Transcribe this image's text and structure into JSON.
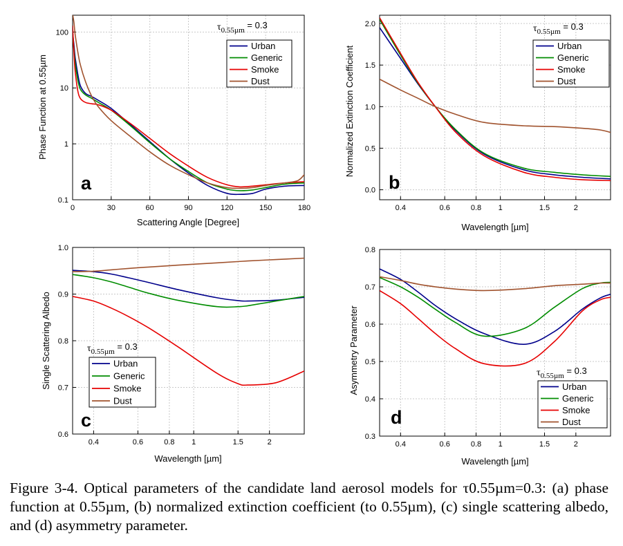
{
  "colors": {
    "Urban": "#00008b",
    "Generic": "#008c00",
    "Smoke": "#e60000",
    "Dust": "#a0522d",
    "grid": "#c8c8c8"
  },
  "caption": "Figure 3-4. Optical parameters of the candidate land aerosol models for τ0.55µm=0.3: (a) phase function at 0.55µm, (b) normalized extinction coefficient (to 0.55µm), (c) single scattering albedo, and (d) asymmetry parameter.",
  "chart_data": [
    {
      "panel_label": "a",
      "type": "line",
      "annotation": {
        "main": "τ",
        "sub": "0.55µm",
        "rest": " = 0.3"
      },
      "xlabel": "Scattering Angle [Degree]",
      "ylabel": "Phase Function at 0.55µm",
      "xlim": [
        0,
        180
      ],
      "ylim": [
        0.1,
        200
      ],
      "yscale": "log",
      "xscale": "linear",
      "grid": true,
      "legend_position": "top-right",
      "xticks": [
        {
          "v": 0,
          "label": "0"
        },
        {
          "v": 30,
          "label": "30"
        },
        {
          "v": 60,
          "label": "60"
        },
        {
          "v": 90,
          "label": "90"
        },
        {
          "v": 120,
          "label": "120"
        },
        {
          "v": 150,
          "label": "150"
        },
        {
          "v": 180,
          "label": "180"
        }
      ],
      "yticks": [
        {
          "v": 0.1,
          "label": "0.1"
        },
        {
          "v": 1,
          "label": "1"
        },
        {
          "v": 10,
          "label": "10"
        },
        {
          "v": 100,
          "label": "100"
        }
      ],
      "series": [
        {
          "name": "Urban",
          "x": [
            0,
            1,
            2,
            4,
            6,
            10,
            15,
            20,
            30,
            45,
            60,
            75,
            90,
            105,
            120,
            130,
            140,
            150,
            165,
            180
          ],
          "y": [
            100,
            60,
            35,
            18,
            11,
            8,
            7,
            6,
            4.3,
            2.2,
            1.1,
            0.55,
            0.3,
            0.18,
            0.13,
            0.125,
            0.13,
            0.155,
            0.175,
            0.18
          ]
        },
        {
          "name": "Generic",
          "x": [
            0,
            1,
            2,
            4,
            6,
            10,
            15,
            20,
            30,
            45,
            60,
            75,
            90,
            105,
            120,
            130,
            140,
            150,
            165,
            180
          ],
          "y": [
            90,
            50,
            28,
            14,
            9.5,
            7.5,
            6.5,
            5.5,
            4,
            2.1,
            1.05,
            0.55,
            0.32,
            0.2,
            0.155,
            0.145,
            0.15,
            0.165,
            0.19,
            0.2
          ]
        },
        {
          "name": "Smoke",
          "x": [
            0,
            1,
            2,
            4,
            6,
            10,
            15,
            20,
            30,
            45,
            60,
            75,
            90,
            105,
            120,
            130,
            140,
            150,
            165,
            180
          ],
          "y": [
            130,
            45,
            20,
            9,
            6.5,
            5.5,
            5.2,
            5,
            4,
            2.3,
            1.25,
            0.68,
            0.4,
            0.25,
            0.185,
            0.17,
            0.175,
            0.185,
            0.2,
            0.21
          ]
        },
        {
          "name": "Dust",
          "x": [
            0,
            1,
            2,
            4,
            6,
            10,
            15,
            20,
            30,
            45,
            60,
            75,
            90,
            105,
            120,
            130,
            140,
            150,
            165,
            175,
            180
          ],
          "y": [
            210,
            150,
            90,
            45,
            26,
            13,
            7,
            4.6,
            2.6,
            1.35,
            0.72,
            0.42,
            0.28,
            0.2,
            0.165,
            0.16,
            0.165,
            0.18,
            0.2,
            0.22,
            0.28
          ]
        }
      ]
    },
    {
      "panel_label": "b",
      "type": "line",
      "annotation": {
        "main": "τ",
        "sub": "0.55µm",
        "rest": " = 0.3"
      },
      "xlabel": "Wavelength [µm]",
      "ylabel": "Normalized Extinction Coefficient",
      "xlim": [
        0.33,
        2.75
      ],
      "ylim": [
        -0.12,
        2.1
      ],
      "xscale": "log",
      "yscale": "linear",
      "grid": true,
      "legend_position": "top-right",
      "xticks": [
        {
          "v": 0.4,
          "label": "0.4"
        },
        {
          "v": 0.6,
          "label": "0.6"
        },
        {
          "v": 0.8,
          "label": "0.8"
        },
        {
          "v": 1,
          "label": "1"
        },
        {
          "v": 1.5,
          "label": "1.5"
        },
        {
          "v": 2,
          "label": "2"
        }
      ],
      "yticks": [
        {
          "v": 0,
          "label": "0.0"
        },
        {
          "v": 0.5,
          "label": "0.5"
        },
        {
          "v": 1,
          "label": "1.0"
        },
        {
          "v": 1.5,
          "label": "1.5"
        },
        {
          "v": 2,
          "label": "2.0"
        }
      ],
      "series": [
        {
          "name": "Urban",
          "x": [
            0.33,
            0.4,
            0.47,
            0.55,
            0.66,
            0.86,
            1.24,
            1.64,
            2.12,
            2.75
          ],
          "y": [
            1.95,
            1.58,
            1.27,
            1.0,
            0.72,
            0.43,
            0.24,
            0.18,
            0.15,
            0.13
          ]
        },
        {
          "name": "Generic",
          "x": [
            0.33,
            0.4,
            0.47,
            0.55,
            0.66,
            0.86,
            1.24,
            1.64,
            2.12,
            2.75
          ],
          "y": [
            2.05,
            1.62,
            1.28,
            1.0,
            0.73,
            0.44,
            0.26,
            0.21,
            0.18,
            0.16
          ]
        },
        {
          "name": "Smoke",
          "x": [
            0.33,
            0.4,
            0.47,
            0.55,
            0.66,
            0.86,
            1.24,
            1.64,
            2.12,
            2.75
          ],
          "y": [
            2.07,
            1.64,
            1.29,
            1.0,
            0.7,
            0.41,
            0.21,
            0.15,
            0.12,
            0.11
          ]
        },
        {
          "name": "Dust",
          "x": [
            0.33,
            0.4,
            0.47,
            0.55,
            0.66,
            0.86,
            1.24,
            1.64,
            2.12,
            2.5,
            2.75
          ],
          "y": [
            1.33,
            1.2,
            1.1,
            1.0,
            0.91,
            0.81,
            0.77,
            0.76,
            0.74,
            0.72,
            0.69
          ]
        }
      ]
    },
    {
      "panel_label": "c",
      "type": "line",
      "annotation": {
        "main": "τ",
        "sub": "0.55µm",
        "rest": " = 0.3"
      },
      "xlabel": "Wavelength [µm]",
      "ylabel": "Single Scattering Albedo",
      "xlim": [
        0.33,
        2.75
      ],
      "ylim": [
        0.6,
        1.0
      ],
      "xscale": "log",
      "yscale": "linear",
      "grid": true,
      "legend_position": "bottom-left",
      "xticks": [
        {
          "v": 0.4,
          "label": "0.4"
        },
        {
          "v": 0.6,
          "label": "0.6"
        },
        {
          "v": 0.8,
          "label": "0.8"
        },
        {
          "v": 1,
          "label": "1"
        },
        {
          "v": 1.5,
          "label": "1.5"
        },
        {
          "v": 2,
          "label": "2"
        }
      ],
      "yticks": [
        {
          "v": 0.6,
          "label": "0.6"
        },
        {
          "v": 0.7,
          "label": "0.7"
        },
        {
          "v": 0.8,
          "label": "0.8"
        },
        {
          "v": 0.9,
          "label": "0.9"
        },
        {
          "v": 1.0,
          "label": "1.0"
        }
      ],
      "series": [
        {
          "name": "Urban",
          "x": [
            0.33,
            0.4,
            0.47,
            0.55,
            0.66,
            0.86,
            1.24,
            1.5,
            1.64,
            2.12,
            2.75
          ],
          "y": [
            0.951,
            0.948,
            0.943,
            0.935,
            0.925,
            0.91,
            0.892,
            0.886,
            0.885,
            0.887,
            0.893
          ]
        },
        {
          "name": "Generic",
          "x": [
            0.33,
            0.4,
            0.47,
            0.55,
            0.66,
            0.86,
            1.24,
            1.5,
            1.64,
            2.12,
            2.75
          ],
          "y": [
            0.942,
            0.935,
            0.926,
            0.915,
            0.902,
            0.887,
            0.873,
            0.873,
            0.875,
            0.885,
            0.895
          ]
        },
        {
          "name": "Smoke",
          "x": [
            0.33,
            0.4,
            0.47,
            0.55,
            0.66,
            0.86,
            1.24,
            1.5,
            1.64,
            2.12,
            2.75
          ],
          "y": [
            0.895,
            0.885,
            0.87,
            0.852,
            0.828,
            0.788,
            0.73,
            0.708,
            0.705,
            0.71,
            0.735
          ]
        },
        {
          "name": "Dust",
          "x": [
            0.33,
            0.4,
            0.47,
            0.55,
            0.66,
            0.86,
            1.24,
            1.64,
            2.12,
            2.75
          ],
          "y": [
            0.948,
            0.949,
            0.952,
            0.955,
            0.958,
            0.962,
            0.967,
            0.971,
            0.974,
            0.977
          ]
        }
      ]
    },
    {
      "panel_label": "d",
      "type": "line",
      "annotation": {
        "main": "τ",
        "sub": "0.55µm",
        "rest": " = 0.3"
      },
      "xlabel": "Wavelength [µm]",
      "ylabel": "Asymmetry Parameter",
      "xlim": [
        0.33,
        2.75
      ],
      "ylim": [
        0.3,
        0.8
      ],
      "xscale": "log",
      "yscale": "linear",
      "grid": true,
      "legend_position": "bottom-right",
      "xticks": [
        {
          "v": 0.4,
          "label": "0.4"
        },
        {
          "v": 0.6,
          "label": "0.6"
        },
        {
          "v": 0.8,
          "label": "0.8"
        },
        {
          "v": 1,
          "label": "1"
        },
        {
          "v": 1.5,
          "label": "1.5"
        },
        {
          "v": 2,
          "label": "2"
        }
      ],
      "yticks": [
        {
          "v": 0.3,
          "label": "0.3"
        },
        {
          "v": 0.4,
          "label": "0.4"
        },
        {
          "v": 0.5,
          "label": "0.5"
        },
        {
          "v": 0.6,
          "label": "0.6"
        },
        {
          "v": 0.7,
          "label": "0.7"
        },
        {
          "v": 0.8,
          "label": "0.8"
        }
      ],
      "series": [
        {
          "name": "Urban",
          "x": [
            0.33,
            0.4,
            0.47,
            0.55,
            0.66,
            0.86,
            1.24,
            1.64,
            2.12,
            2.5,
            2.75
          ],
          "y": [
            0.748,
            0.72,
            0.686,
            0.65,
            0.615,
            0.575,
            0.546,
            0.58,
            0.64,
            0.67,
            0.68
          ]
        },
        {
          "name": "Generic",
          "x": [
            0.33,
            0.4,
            0.47,
            0.55,
            0.66,
            0.86,
            1.24,
            1.64,
            2.12,
            2.5,
            2.75
          ],
          "y": [
            0.725,
            0.7,
            0.672,
            0.64,
            0.605,
            0.568,
            0.588,
            0.645,
            0.695,
            0.71,
            0.712
          ]
        },
        {
          "name": "Smoke",
          "x": [
            0.33,
            0.4,
            0.47,
            0.55,
            0.66,
            0.86,
            1.24,
            1.64,
            2.12,
            2.5,
            2.75
          ],
          "y": [
            0.69,
            0.655,
            0.615,
            0.575,
            0.535,
            0.494,
            0.494,
            0.553,
            0.635,
            0.665,
            0.672
          ]
        },
        {
          "name": "Dust",
          "x": [
            0.33,
            0.4,
            0.47,
            0.55,
            0.66,
            0.86,
            1.24,
            1.64,
            2.12,
            2.5,
            2.75
          ],
          "y": [
            0.727,
            0.717,
            0.707,
            0.7,
            0.694,
            0.69,
            0.695,
            0.703,
            0.707,
            0.71,
            0.71
          ]
        }
      ]
    }
  ]
}
